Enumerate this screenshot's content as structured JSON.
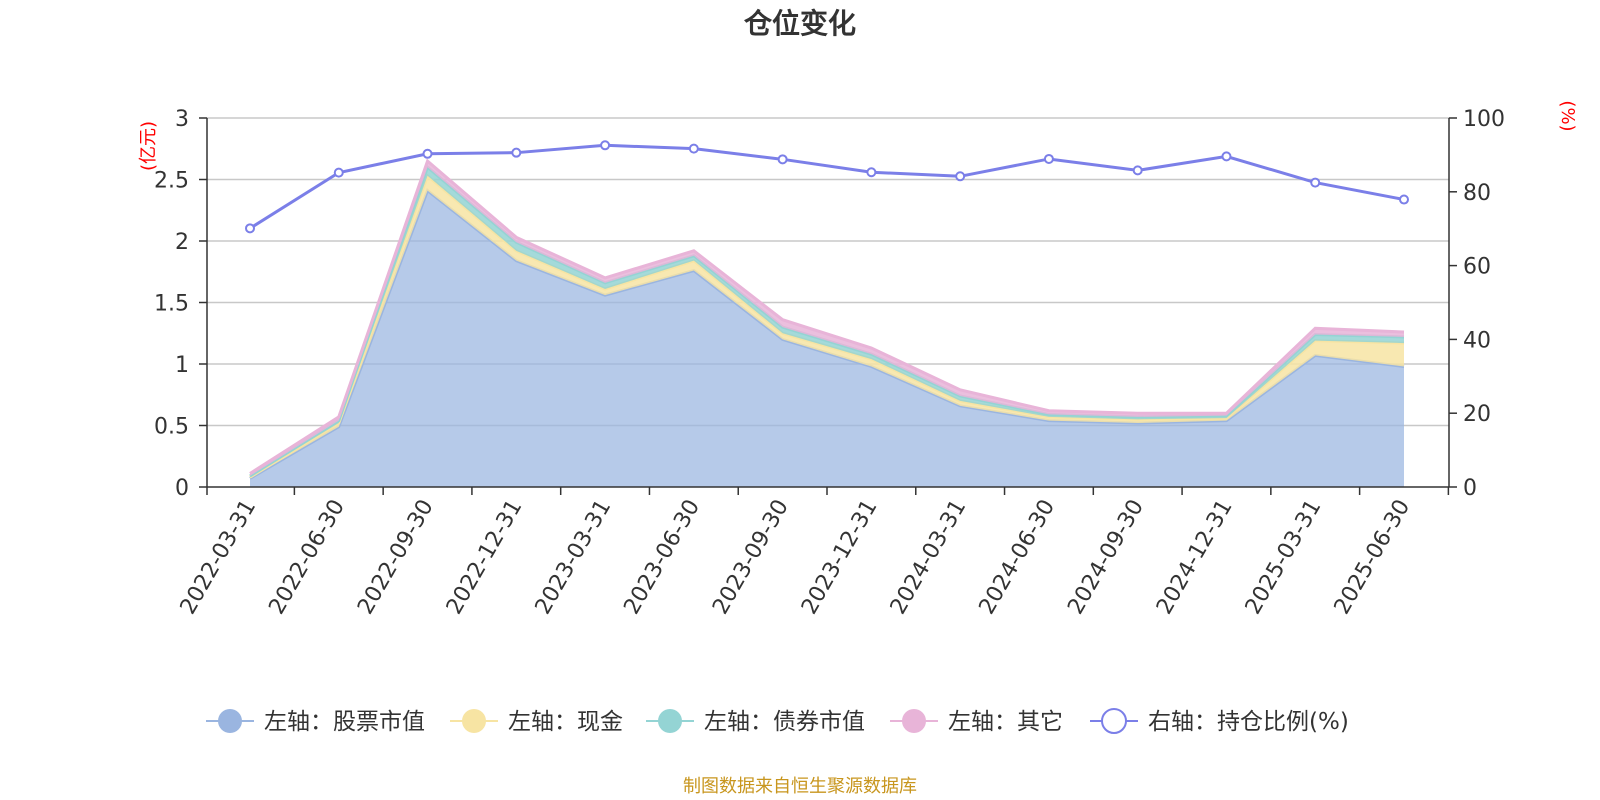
{
  "title": "仓位变化",
  "source": "制图数据来自恒生聚源数据库",
  "chart_data": {
    "type": "area",
    "categories": [
      "2022-03-31",
      "2022-06-30",
      "2022-09-30",
      "2022-12-31",
      "2023-03-31",
      "2023-06-30",
      "2023-09-30",
      "2023-12-31",
      "2024-03-31",
      "2024-06-30",
      "2024-09-30",
      "2024-12-31",
      "2025-03-31",
      "2025-06-30"
    ],
    "left_axis": {
      "unit": "(亿元)",
      "ticks": [
        "0",
        "0.5",
        "1",
        "1.5",
        "2",
        "2.5",
        "3"
      ],
      "ylim": [
        0,
        3
      ]
    },
    "right_axis": {
      "unit": "(%)",
      "ticks": [
        "0",
        "20",
        "40",
        "60",
        "80",
        "100"
      ],
      "ylim": [
        0,
        100
      ]
    },
    "series": [
      {
        "name": "左轴：股票市值",
        "axis": "left",
        "type": "area",
        "color": "#9ab5e0",
        "values": [
          0.07,
          0.49,
          2.41,
          1.84,
          1.56,
          1.76,
          1.2,
          0.98,
          0.66,
          0.54,
          0.52,
          0.54,
          1.07,
          0.98
        ]
      },
      {
        "name": "左轴：现金",
        "axis": "left",
        "type": "area",
        "color": "#f7e4a3",
        "values": [
          0.01,
          0.03,
          0.12,
          0.08,
          0.05,
          0.08,
          0.05,
          0.06,
          0.04,
          0.03,
          0.03,
          0.02,
          0.12,
          0.19
        ]
      },
      {
        "name": "左轴：债券市值",
        "axis": "left",
        "type": "area",
        "color": "#94d4d4",
        "values": [
          0.01,
          0.02,
          0.07,
          0.07,
          0.05,
          0.04,
          0.05,
          0.04,
          0.04,
          0.02,
          0.02,
          0.02,
          0.05,
          0.05
        ]
      },
      {
        "name": "左轴：其它",
        "axis": "left",
        "type": "area",
        "color": "#e8b4d8",
        "values": [
          0.02,
          0.03,
          0.05,
          0.04,
          0.04,
          0.04,
          0.06,
          0.05,
          0.05,
          0.03,
          0.03,
          0.02,
          0.05,
          0.04
        ]
      },
      {
        "name": "右轴：持仓比例(%)",
        "axis": "right",
        "type": "line",
        "color": "#7b7fe8",
        "values": [
          70.1,
          85.2,
          90.3,
          90.6,
          92.6,
          91.7,
          88.8,
          85.3,
          84.2,
          88.9,
          85.8,
          89.6,
          82.5,
          77.9
        ]
      }
    ],
    "grid": true,
    "legend_position": "bottom"
  }
}
